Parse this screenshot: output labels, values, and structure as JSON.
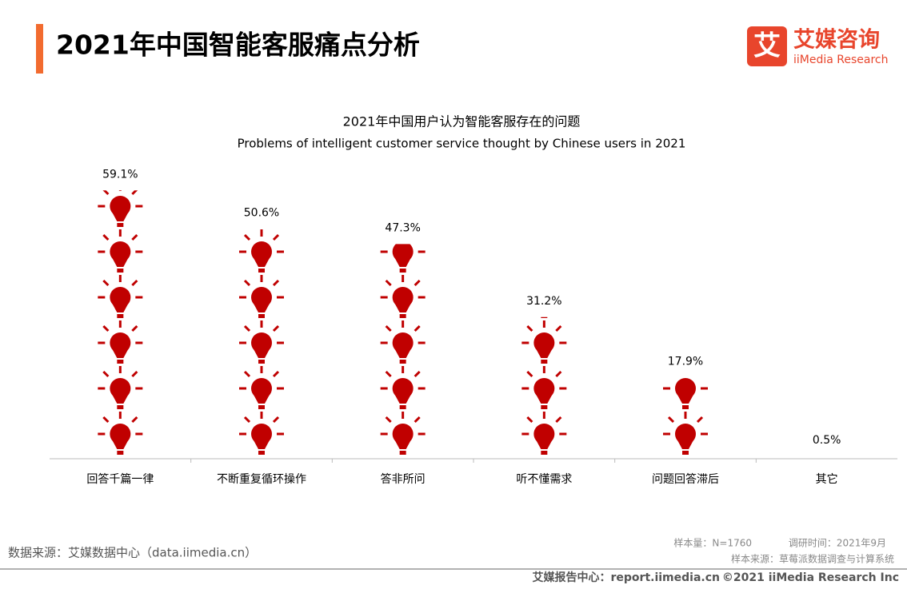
{
  "header": {
    "title": "2021年中国智能客服痛点分析"
  },
  "logo": {
    "mark": "艾",
    "name": "艾媒咨询",
    "sub": "iiMedia Research"
  },
  "chart_data": {
    "type": "pictogram",
    "title": "2021年中国用户认为智能客服存在的问题",
    "subtitle": "Problems of intelligent customer service thought by Chinese users in 2021",
    "categories": [
      "回答千篇一律",
      "不断重复循环操作",
      "答非所问",
      "听不懂需求",
      "问题回答滞后",
      "其它"
    ],
    "values": [
      59.1,
      50.6,
      47.3,
      31.2,
      17.9,
      0.5
    ],
    "value_labels": [
      "59.1%",
      "50.6%",
      "47.3%",
      "31.2%",
      "17.9%",
      "0.5%"
    ],
    "color": "#c00000"
  },
  "footer": {
    "source": "数据来源：艾媒数据中心（data.iimedia.cn）",
    "sample_size": "样本量：N=1760",
    "survey_time": "调研时间：2021年9月",
    "sample_source": "样本来源：草莓派数据调查与计算系统",
    "report_center": "艾媒报告中心：report.iimedia.cn",
    "copyright": "©2021  iiMedia Research  Inc"
  }
}
